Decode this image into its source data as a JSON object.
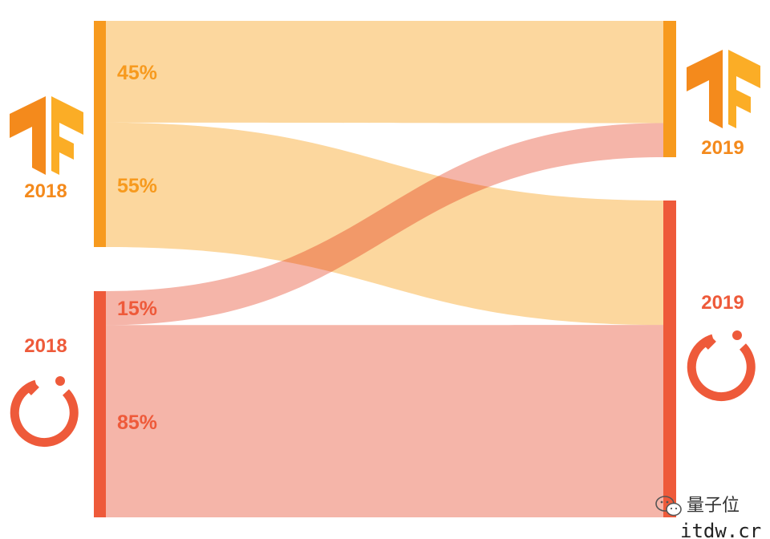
{
  "chart_data": {
    "type": "sankey",
    "title": "",
    "colors": {
      "tensorflow": "#f79a1e",
      "tensorflow_band": "#fcd599",
      "pytorch": "#ee5a3a",
      "pytorch_band": "#f4ada0"
    },
    "source_nodes": [
      {
        "id": "tf-2018",
        "framework": "tensorflow",
        "year_label": "2018",
        "logo": "tensorflow-logo",
        "share": 0.5
      },
      {
        "id": "pt-2018",
        "framework": "pytorch",
        "year_label": "2018",
        "logo": "pytorch-logo",
        "share": 0.5
      }
    ],
    "target_nodes": [
      {
        "id": "tf-2019",
        "framework": "tensorflow",
        "year_label": "2019",
        "logo": "tensorflow-logo",
        "share": 0.3
      },
      {
        "id": "pt-2019",
        "framework": "pytorch",
        "year_label": "2019",
        "logo": "pytorch-logo",
        "share": 0.7
      }
    ],
    "flows": [
      {
        "from": "tf-2018",
        "to": "tf-2019",
        "value": 45,
        "label": "45%"
      },
      {
        "from": "tf-2018",
        "to": "pt-2019",
        "value": 55,
        "label": "55%"
      },
      {
        "from": "pt-2018",
        "to": "tf-2019",
        "value": 15,
        "label": "15%"
      },
      {
        "from": "pt-2018",
        "to": "pt-2019",
        "value": 85,
        "label": "85%"
      }
    ]
  },
  "watermark": {
    "brand": "量子位",
    "icon": "wechat-icon",
    "url": "itdw.cr"
  }
}
